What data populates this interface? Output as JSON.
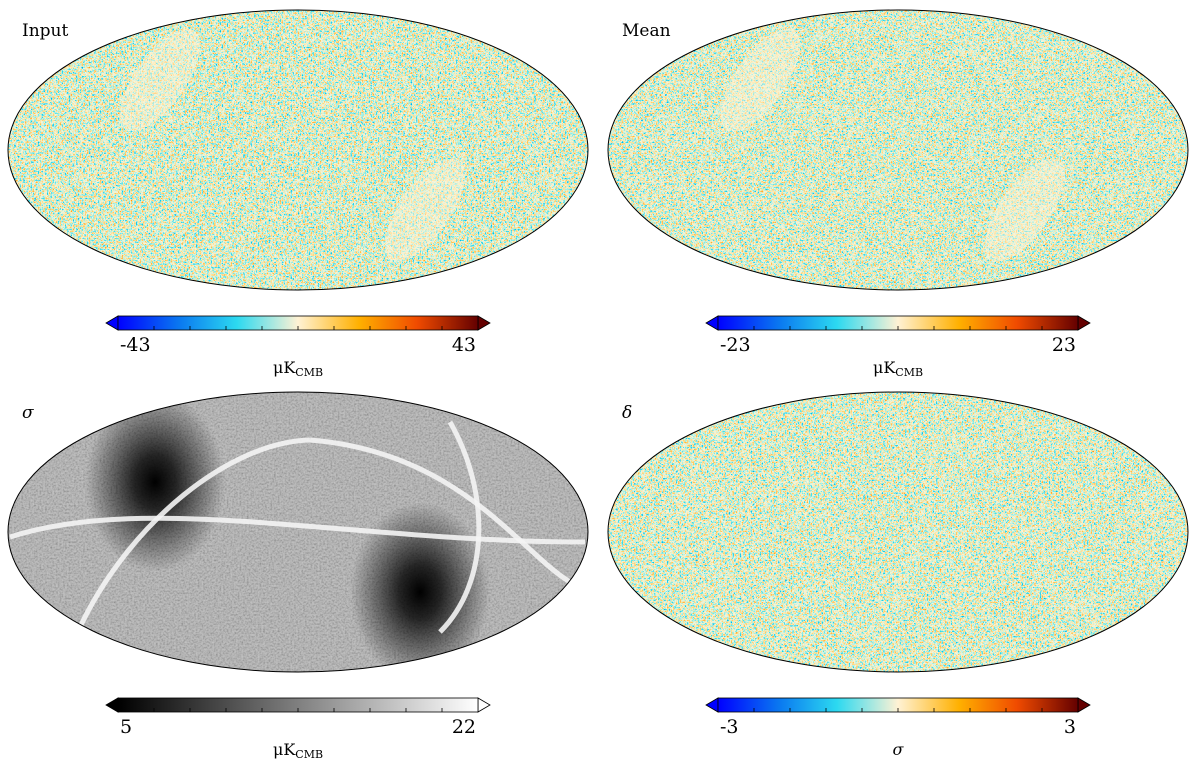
{
  "panels": [
    {
      "label": "Input",
      "colorbar": {
        "min": -43,
        "max": 43,
        "unit": "μK",
        "unit_sub": "CMB"
      }
    },
    {
      "label": "Mean",
      "colorbar": {
        "min": -23,
        "max": 23,
        "unit": "μK",
        "unit_sub": "CMB"
      }
    },
    {
      "label": "σ",
      "colorbar": {
        "min": 5,
        "max": 22,
        "unit": "μK",
        "unit_sub": "CMB"
      }
    },
    {
      "label": "δ",
      "colorbar": {
        "min": -3,
        "max": 3,
        "unit": "σ"
      }
    }
  ]
}
